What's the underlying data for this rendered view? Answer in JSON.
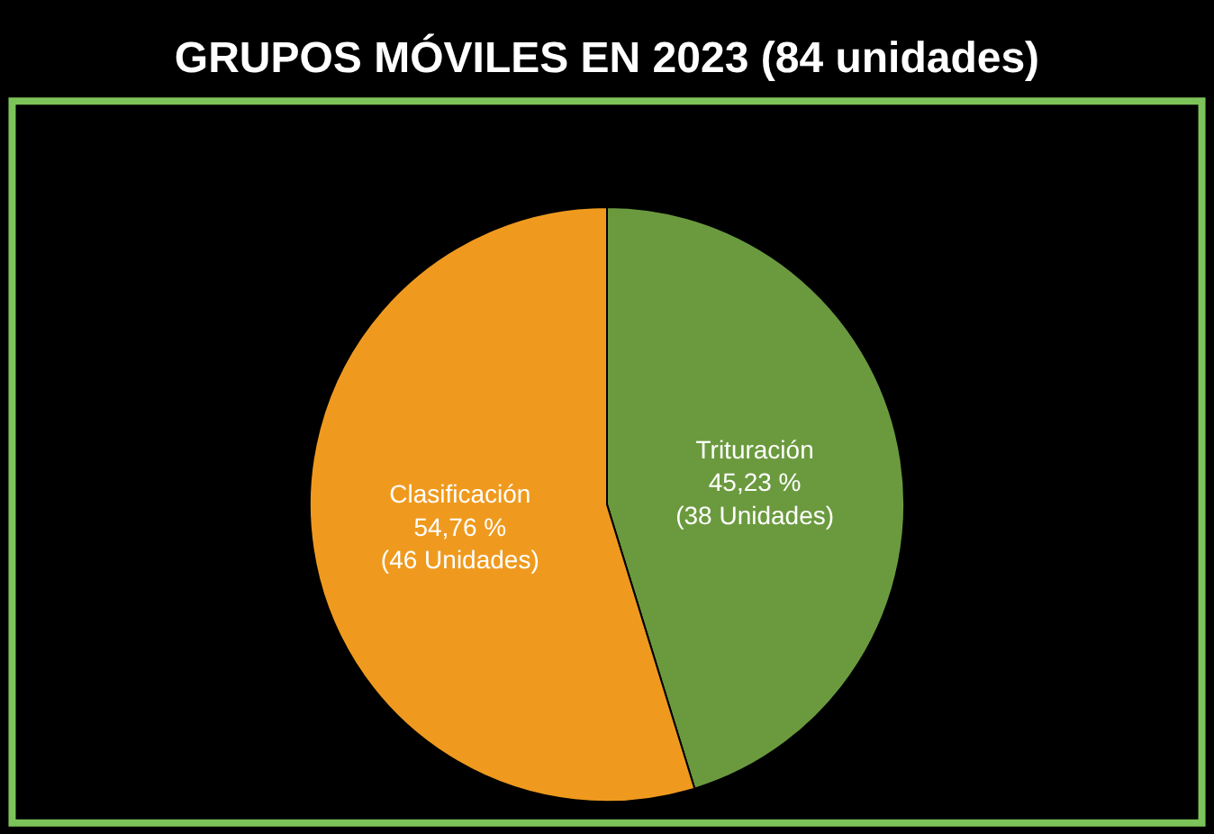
{
  "chart_data": {
    "type": "pie",
    "title": "GRUPOS MÓVILES EN 2023 (84 unidades)",
    "categories": [
      "Trituración",
      "Clasificación"
    ],
    "values": [
      38,
      46
    ],
    "colors": [
      "#6b9a3e",
      "#ef9a1e"
    ],
    "value_labels": [
      "45,23 %\n(38 Unidades)",
      "54,76 %\n(46 Unidades)"
    ],
    "legend": false
  }
}
